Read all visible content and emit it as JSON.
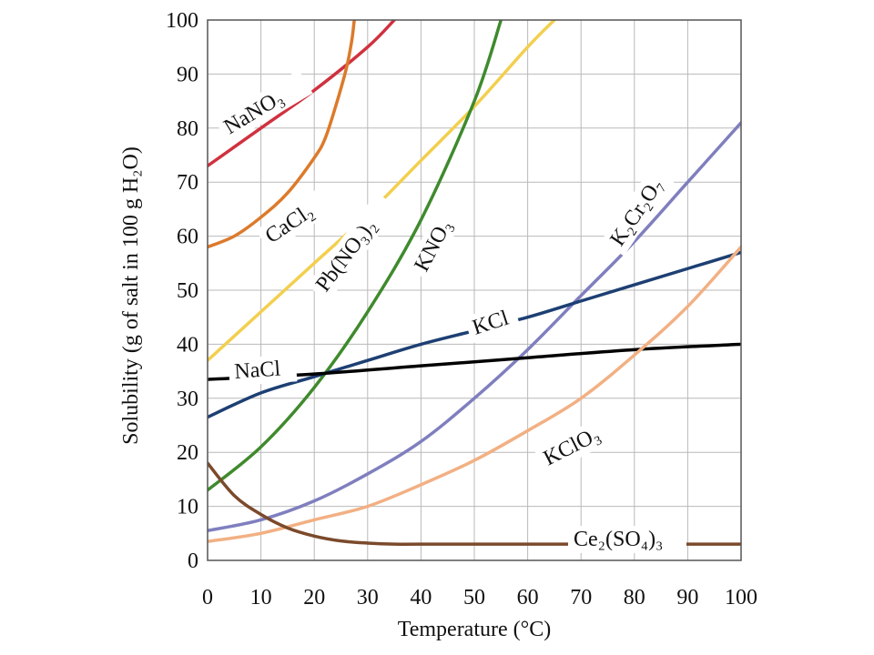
{
  "chart_data": {
    "type": "line",
    "xlabel": "Temperature (°C)",
    "ylabel": "Solubility (g of salt in 100 g H₂O)",
    "xlim": [
      0,
      100
    ],
    "ylim": [
      0,
      100
    ],
    "xticks": [
      0,
      10,
      20,
      30,
      40,
      50,
      60,
      70,
      80,
      90,
      100
    ],
    "yticks": [
      0,
      10,
      20,
      30,
      40,
      50,
      60,
      70,
      80,
      90,
      100
    ],
    "grid": true,
    "series": [
      {
        "name": "NaNO₃",
        "color": "#d0313f",
        "points": [
          [
            0,
            73
          ],
          [
            10,
            80
          ],
          [
            20,
            87
          ],
          [
            30,
            95
          ],
          [
            35,
            100
          ]
        ]
      },
      {
        "name": "CaCl₂",
        "color": "#dc7a2b",
        "points": [
          [
            0,
            58
          ],
          [
            5,
            60
          ],
          [
            10,
            63.5
          ],
          [
            15,
            68
          ],
          [
            20,
            74.5
          ],
          [
            22,
            78
          ],
          [
            24,
            84
          ],
          [
            26,
            91
          ],
          [
            27,
            96
          ],
          [
            27.5,
            100
          ]
        ]
      },
      {
        "name": "Pb(NO₃)₂",
        "color": "#f2cf4e",
        "points": [
          [
            0,
            37
          ],
          [
            10,
            46
          ],
          [
            20,
            55
          ],
          [
            30,
            64
          ],
          [
            40,
            74
          ],
          [
            50,
            84
          ],
          [
            60,
            95
          ],
          [
            65,
            100
          ]
        ]
      },
      {
        "name": "KNO₃",
        "color": "#3f8a2d",
        "points": [
          [
            0,
            13
          ],
          [
            10,
            21
          ],
          [
            20,
            32
          ],
          [
            30,
            46
          ],
          [
            40,
            63
          ],
          [
            50,
            85
          ],
          [
            55,
            100
          ]
        ]
      },
      {
        "name": "K₂Cr₂O₇",
        "color": "#7f7fbf",
        "points": [
          [
            0,
            5.5
          ],
          [
            10,
            7.5
          ],
          [
            20,
            11
          ],
          [
            30,
            16
          ],
          [
            40,
            22
          ],
          [
            50,
            30
          ],
          [
            60,
            39
          ],
          [
            70,
            49
          ],
          [
            80,
            59
          ],
          [
            90,
            70
          ],
          [
            100,
            81
          ]
        ]
      },
      {
        "name": "KCl",
        "color": "#1d3f73",
        "points": [
          [
            0,
            26.5
          ],
          [
            10,
            31
          ],
          [
            20,
            34
          ],
          [
            30,
            37
          ],
          [
            40,
            40
          ],
          [
            50,
            42.5
          ],
          [
            60,
            45
          ],
          [
            70,
            48
          ],
          [
            80,
            51
          ],
          [
            90,
            54
          ],
          [
            100,
            57
          ]
        ]
      },
      {
        "name": "NaCl",
        "color": "#000000",
        "points": [
          [
            0,
            33.5
          ],
          [
            20,
            34.5
          ],
          [
            40,
            36
          ],
          [
            60,
            37.5
          ],
          [
            80,
            39
          ],
          [
            100,
            40
          ]
        ]
      },
      {
        "name": "KClO₃",
        "color": "#f2b083",
        "points": [
          [
            0,
            3.5
          ],
          [
            10,
            5
          ],
          [
            20,
            7.5
          ],
          [
            30,
            10
          ],
          [
            40,
            14
          ],
          [
            50,
            18.5
          ],
          [
            60,
            24
          ],
          [
            70,
            30
          ],
          [
            80,
            38
          ],
          [
            90,
            47
          ],
          [
            100,
            58
          ]
        ]
      },
      {
        "name": "Ce₂(SO₄)₃",
        "color": "#7b4a2b",
        "points": [
          [
            0,
            18
          ],
          [
            5,
            12
          ],
          [
            10,
            8.5
          ],
          [
            15,
            6
          ],
          [
            20,
            4.5
          ],
          [
            25,
            3.6
          ],
          [
            30,
            3.2
          ],
          [
            35,
            3
          ],
          [
            40,
            3
          ],
          [
            60,
            3
          ],
          [
            80,
            3
          ],
          [
            100,
            3
          ]
        ]
      }
    ]
  }
}
